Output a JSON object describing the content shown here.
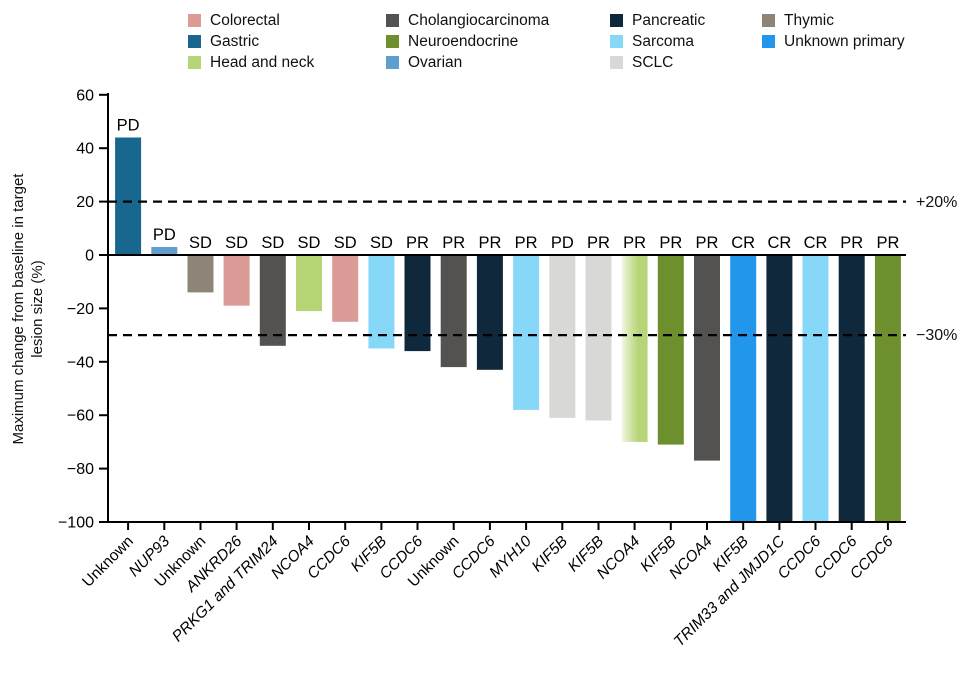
{
  "figure": {
    "y_axis_title_line1": "Maximum change from baseline in target",
    "y_axis_title_line2": "lesion size (%)"
  },
  "chart_data": {
    "type": "bar",
    "title": "",
    "ylabel": "Maximum change from baseline in target lesion size (%)",
    "xlabel": "",
    "ylim": [
      -100,
      60
    ],
    "ytick_values": [
      60,
      40,
      20,
      0,
      -20,
      -40,
      -60,
      -80,
      -100
    ],
    "ytick_labels": [
      "60",
      "40",
      "20",
      "0",
      "−20",
      "−40",
      "−60",
      "−80",
      "−100"
    ],
    "grid": false,
    "legend_position": "top",
    "reference_lines": [
      {
        "value": 20,
        "label": "+20%"
      },
      {
        "value": -30,
        "label": "−30%"
      }
    ],
    "tumor_colors": {
      "Colorectal": "#dd9b97",
      "Gastric": "#17678e",
      "Head and neck": "#b5d577",
      "Cholangiocarcinoma": "#545250",
      "Neuroendocrine": "#6e8f2e",
      "Ovarian": "#5f9fd0",
      "Pancreatic": "#0f283c",
      "Sarcoma": "#87d8f8",
      "SCLC": "#d8d8d6",
      "Thymic": "#8f8478",
      "Unknown primary": "#2196eb"
    },
    "legend_columns": [
      [
        "Colorectal",
        "Gastric",
        "Head and neck"
      ],
      [
        "Cholangiocarcinoma",
        "Neuroendocrine",
        "Ovarian"
      ],
      [
        "Pancreatic",
        "Sarcoma",
        "SCLC"
      ],
      [
        "Thymic",
        "Unknown primary"
      ]
    ],
    "bars": [
      {
        "label": "Unknown",
        "italic": false,
        "tumor": "Gastric",
        "response": "PD",
        "value": 44
      },
      {
        "label": "NUP93",
        "italic": true,
        "tumor": "Ovarian",
        "response": "PD",
        "value": 3
      },
      {
        "label": "Unknown",
        "italic": false,
        "tumor": "Thymic",
        "response": "SD",
        "value": -14
      },
      {
        "label": "ANKRD26",
        "italic": true,
        "tumor": "Colorectal",
        "response": "SD",
        "value": -19
      },
      {
        "label": "PRKG1 and TRIM24",
        "italic": true,
        "tumor": "Cholangiocarcinoma",
        "response": "SD",
        "value": -34
      },
      {
        "label": "NCOA4",
        "italic": true,
        "tumor": "Head and neck",
        "response": "SD",
        "value": -21
      },
      {
        "label": "CCDC6",
        "italic": true,
        "tumor": "Colorectal",
        "response": "SD",
        "value": -25
      },
      {
        "label": "KIF5B",
        "italic": true,
        "tumor": "Sarcoma",
        "response": "SD",
        "value": -35
      },
      {
        "label": "CCDC6",
        "italic": true,
        "tumor": "Pancreatic",
        "response": "PR",
        "value": -36
      },
      {
        "label": "Unknown",
        "italic": false,
        "tumor": "Cholangiocarcinoma",
        "response": "PR",
        "value": -42
      },
      {
        "label": "CCDC6",
        "italic": true,
        "tumor": "Pancreatic",
        "response": "PR",
        "value": -43
      },
      {
        "label": "MYH10",
        "italic": true,
        "tumor": "Sarcoma",
        "response": "PR",
        "value": -58
      },
      {
        "label": "KIF5B",
        "italic": true,
        "tumor": "SCLC",
        "response": "PD",
        "value": -61
      },
      {
        "label": "KIF5B",
        "italic": true,
        "tumor": "SCLC",
        "response": "PR",
        "value": -62
      },
      {
        "label": "NCOA4",
        "italic": true,
        "tumor": "Head and neck",
        "response": "PR",
        "value": -70,
        "faded_left": true
      },
      {
        "label": "KIF5B",
        "italic": true,
        "tumor": "Neuroendocrine",
        "response": "PR",
        "value": -71
      },
      {
        "label": "NCOA4",
        "italic": true,
        "tumor": "Cholangiocarcinoma",
        "response": "PR",
        "value": -77
      },
      {
        "label": "KIF5B",
        "italic": true,
        "tumor": "Unknown primary",
        "response": "CR",
        "value": -100
      },
      {
        "label": "TRIM33 and JMJD1C",
        "italic": true,
        "tumor": "Pancreatic",
        "response": "CR",
        "value": -100
      },
      {
        "label": "CCDC6",
        "italic": true,
        "tumor": "Sarcoma",
        "response": "CR",
        "value": -100
      },
      {
        "label": "CCDC6",
        "italic": true,
        "tumor": "Pancreatic",
        "response": "PR",
        "value": -100
      },
      {
        "label": "CCDC6",
        "italic": true,
        "tumor": "Neuroendocrine",
        "response": "PR",
        "value": -100
      }
    ]
  }
}
